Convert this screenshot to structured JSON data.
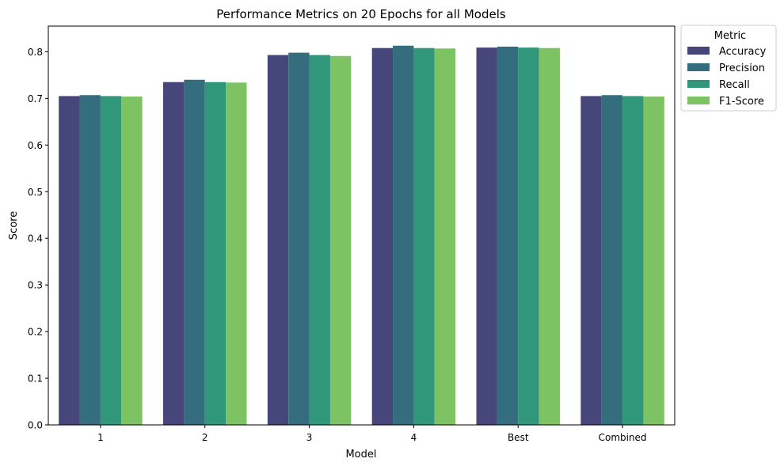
{
  "chart_data": {
    "type": "bar",
    "title": "Performance Metrics on 20 Epochs for all Models",
    "xlabel": "Model",
    "ylabel": "Score",
    "categories": [
      "1",
      "2",
      "3",
      "4",
      "Best",
      "Combined"
    ],
    "ylim": [
      0,
      0.855
    ],
    "yticks": [
      0.0,
      0.1,
      0.2,
      0.3,
      0.4,
      0.5,
      0.6,
      0.7,
      0.8
    ],
    "ytick_labels": [
      "0.0",
      "0.1",
      "0.2",
      "0.3",
      "0.4",
      "0.5",
      "0.6",
      "0.7",
      "0.8"
    ],
    "grid": false,
    "legend_title": "Metric",
    "legend_position": "outside-top-right",
    "series": [
      {
        "name": "Accuracy",
        "color": "#46467a",
        "values": [
          0.705,
          0.735,
          0.793,
          0.808,
          0.809,
          0.705
        ]
      },
      {
        "name": "Precision",
        "color": "#346d7e",
        "values": [
          0.707,
          0.74,
          0.798,
          0.813,
          0.811,
          0.707
        ]
      },
      {
        "name": "Recall",
        "color": "#31977a",
        "values": [
          0.705,
          0.735,
          0.793,
          0.808,
          0.809,
          0.705
        ]
      },
      {
        "name": "F1-Score",
        "color": "#7ec363",
        "values": [
          0.704,
          0.734,
          0.791,
          0.807,
          0.808,
          0.704
        ]
      }
    ]
  }
}
